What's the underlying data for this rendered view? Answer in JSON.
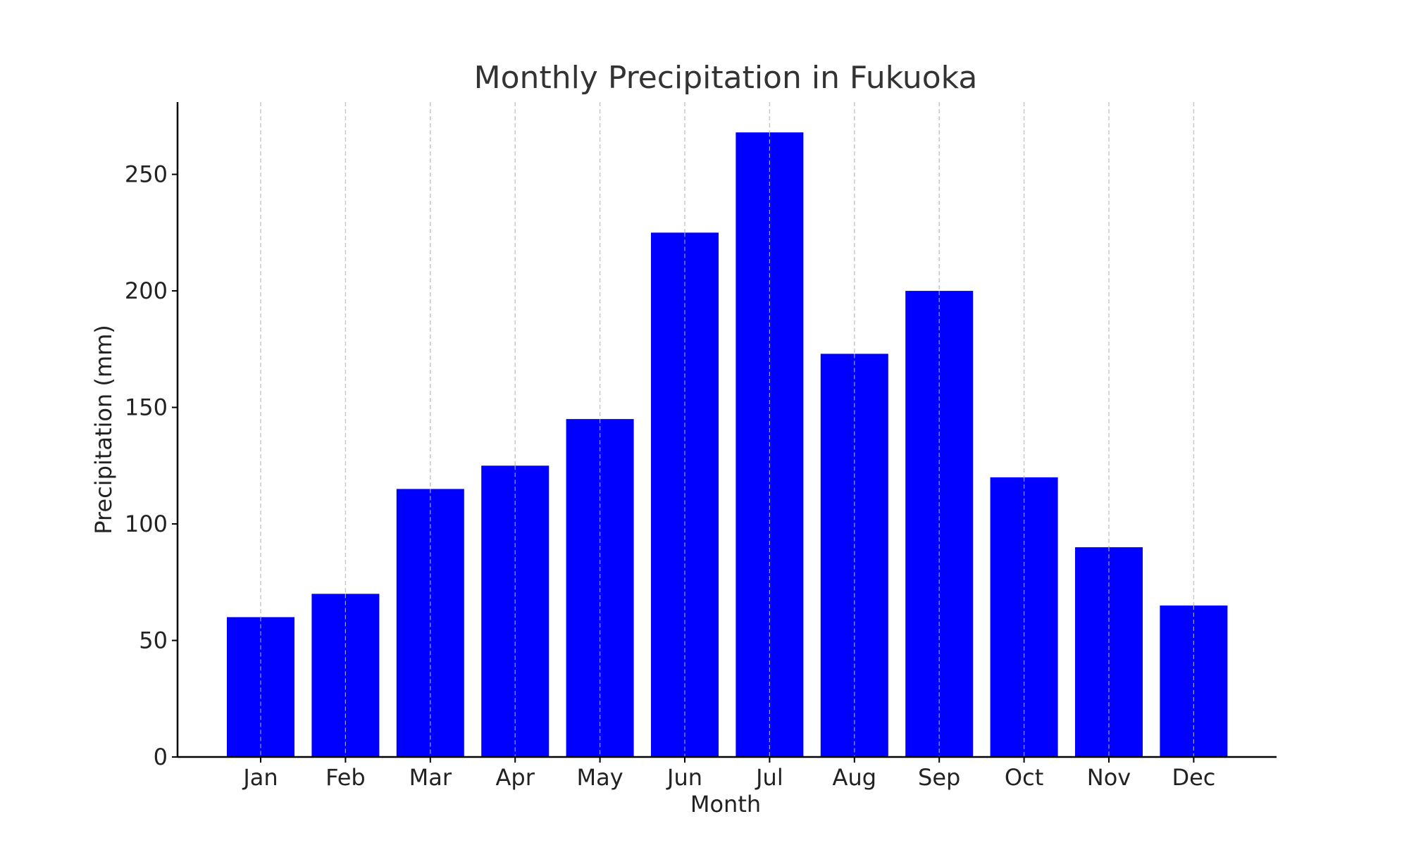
{
  "chart_data": {
    "type": "bar",
    "title": "Monthly Precipitation in Fukuoka",
    "xlabel": "Month",
    "ylabel": "Precipitation (mm)",
    "categories": [
      "Jan",
      "Feb",
      "Mar",
      "Apr",
      "May",
      "Jun",
      "Jul",
      "Aug",
      "Sep",
      "Oct",
      "Nov",
      "Dec"
    ],
    "values": [
      60,
      70,
      115,
      125,
      145,
      225,
      268,
      173,
      200,
      120,
      90,
      65
    ],
    "ylim": [
      0,
      281
    ],
    "yticks": [
      0,
      50,
      100,
      150,
      200,
      250
    ],
    "grid": "x-dashed",
    "bar_color": "#0000ff"
  }
}
